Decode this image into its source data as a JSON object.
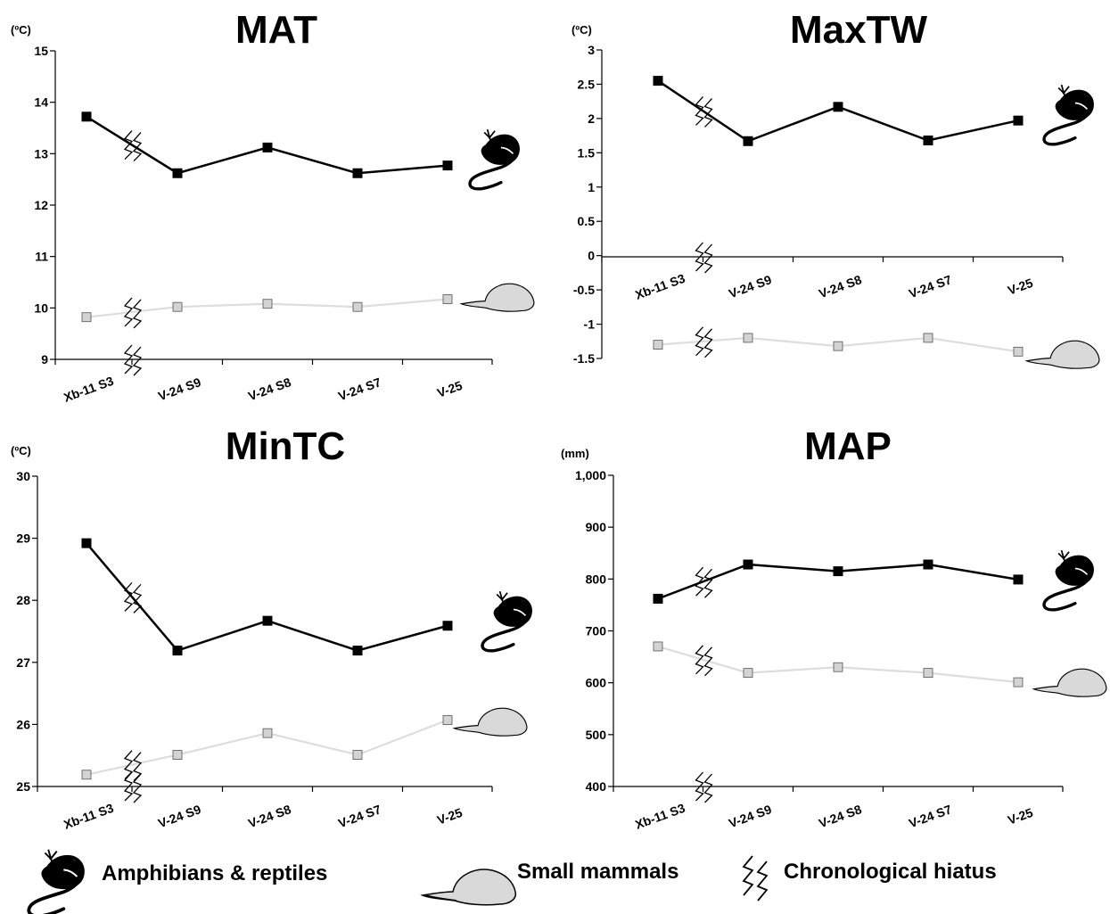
{
  "colors": {
    "amphibians_line": "#000000",
    "mammals_line": "#dddddd",
    "mammals_marker": "#d3d3d3",
    "mammal_fill": "#d9d9d9"
  },
  "legend": {
    "amphibians": "Amphibians & reptiles",
    "mammals": "Small mammals",
    "hiatus": "Chronological hiatus",
    "amphibians_icon": "salamander-icon",
    "mammals_icon": "rodent-icon",
    "hiatus_icon": "zigzag-icon"
  },
  "chart_data": [
    {
      "type": "line",
      "title": "MAT",
      "unit": "(ºC)",
      "categories": [
        "Xb-11 S3",
        "V-24 S9",
        "V-24 S8",
        "V-24 S7",
        "V-25"
      ],
      "yticks": [
        "9",
        "10",
        "11",
        "12",
        "13",
        "14",
        "15"
      ],
      "ylim": [
        9,
        15
      ],
      "series": [
        {
          "name": "Amphibians & reptiles",
          "values": [
            13.72,
            12.62,
            13.12,
            12.62,
            12.77
          ]
        },
        {
          "name": "Small mammals",
          "values": [
            9.82,
            10.02,
            10.08,
            10.02,
            10.17
          ]
        }
      ]
    },
    {
      "type": "line",
      "title": "MaxTW",
      "unit": "(ºC)",
      "categories": [
        "Xb-11 S3",
        "V-24 S9",
        "V-24 S8",
        "V-24 S7",
        "V-25"
      ],
      "yticks": [
        "-1.5",
        "-1",
        "-0.5",
        "0",
        "0.5",
        "1",
        "1.5",
        "2",
        "2.5",
        "3"
      ],
      "ylim": [
        -1.5,
        3
      ],
      "series": [
        {
          "name": "Amphibians & reptiles",
          "values": [
            2.55,
            1.67,
            2.17,
            1.68,
            1.97
          ]
        },
        {
          "name": "Small mammals",
          "values": [
            -1.3,
            -1.2,
            -1.32,
            -1.2,
            -1.4
          ]
        }
      ]
    },
    {
      "type": "line",
      "title": "MinTC",
      "unit": "(ºC)",
      "categories": [
        "Xb-11 S3",
        "V-24 S9",
        "V-24 S8",
        "V-24 S7",
        "V-25"
      ],
      "yticks": [
        "25",
        "26",
        "27",
        "28",
        "29",
        "30"
      ],
      "ylim": [
        25,
        30
      ],
      "series": [
        {
          "name": "Amphibians & reptiles",
          "values": [
            28.92,
            27.19,
            27.67,
            27.19,
            27.59
          ]
        },
        {
          "name": "Small mammals",
          "values": [
            25.19,
            25.51,
            25.86,
            25.51,
            26.07
          ]
        }
      ]
    },
    {
      "type": "line",
      "title": "MAP",
      "unit": "(mm)",
      "categories": [
        "Xb-11 S3",
        "V-24 S9",
        "V-24 S8",
        "V-24 S7",
        "V-25"
      ],
      "yticks": [
        "400",
        "500",
        "600",
        "700",
        "800",
        "900",
        "1,000"
      ],
      "ylim": [
        400,
        1000
      ],
      "series": [
        {
          "name": "Amphibians & reptiles",
          "values": [
            762,
            828,
            815,
            828,
            799
          ]
        },
        {
          "name": "Small mammals",
          "values": [
            670,
            619,
            630,
            619,
            601
          ]
        }
      ]
    }
  ]
}
